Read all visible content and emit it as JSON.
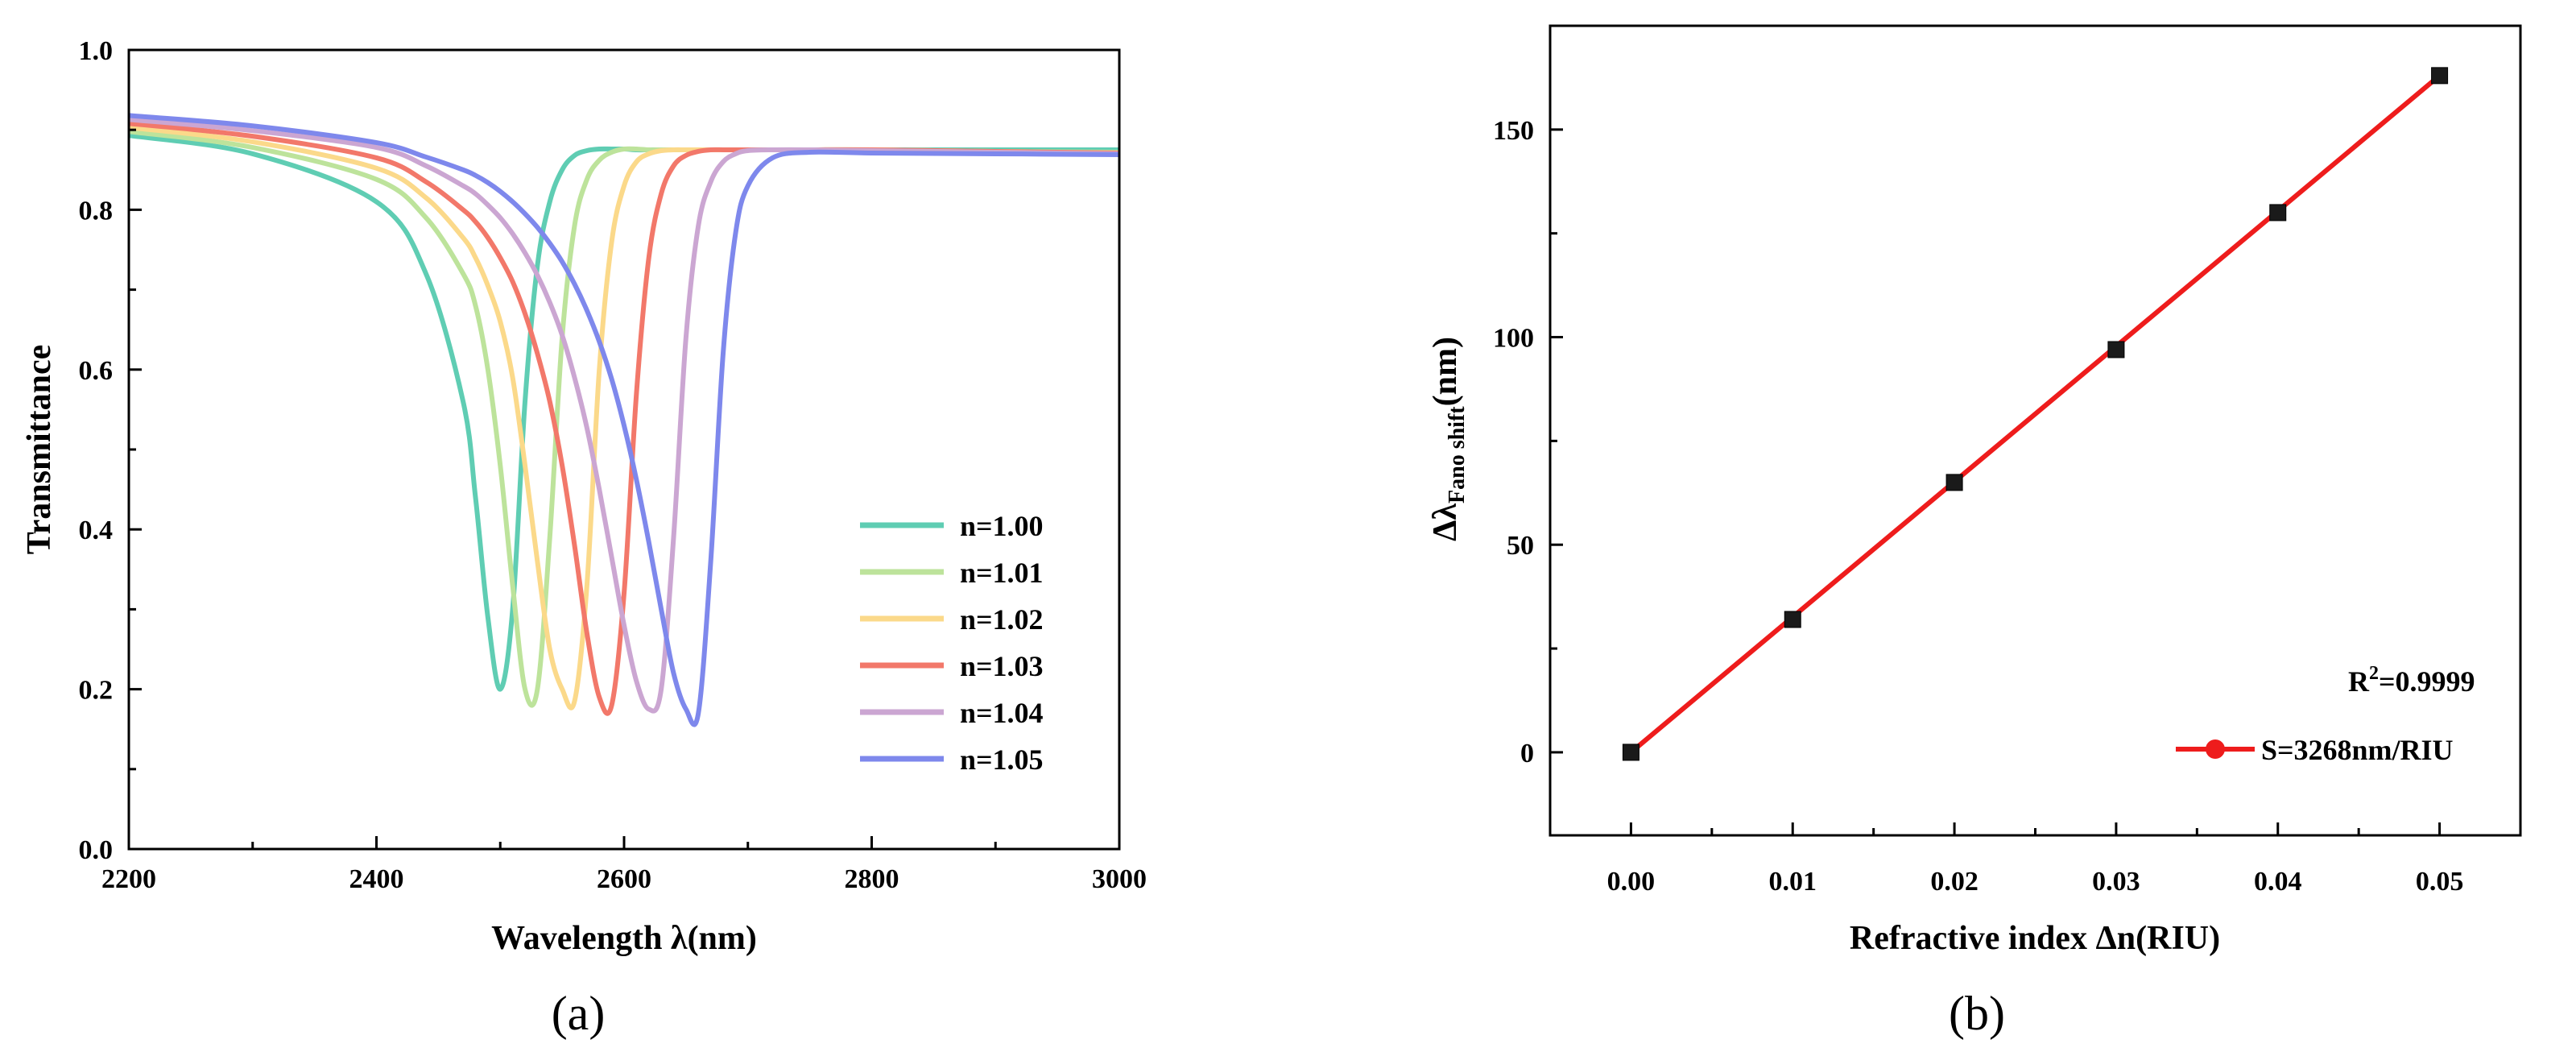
{
  "panels": [
    {
      "panel_label": "(a)",
      "legend_title": "",
      "annotation": ""
    },
    {
      "panel_label": "(b)",
      "annotation": "R²=0.9999",
      "annotation_base": "R",
      "annotation_sup": "2",
      "annotation_rest": "=0.9999"
    }
  ],
  "chart_data": [
    {
      "type": "line",
      "xlabel": "Wavelength λ(nm)",
      "ylabel": "Transmittance",
      "xlim": [
        2200,
        3000
      ],
      "ylim": [
        0.0,
        1.0
      ],
      "xticks": [
        "2200",
        "2400",
        "2600",
        "2800",
        "3000"
      ],
      "yticks": [
        "0.0",
        "0.2",
        "0.4",
        "0.6",
        "0.8",
        "1.0"
      ],
      "legend_position": "lower-right",
      "grid": false,
      "x": [
        2200,
        2300,
        2400,
        2440,
        2470,
        2480,
        2490,
        2500,
        2510,
        2520,
        2530,
        2540,
        2550,
        2560,
        2570,
        2580,
        2590,
        2600,
        2610,
        2620,
        2630,
        2640,
        2650,
        2660,
        2670,
        2680,
        2690,
        2700,
        2720,
        2750,
        2800,
        2900,
        3000
      ],
      "series": [
        {
          "name": "n=1.00",
          "color": "#5fcdb3",
          "values": [
            0.893,
            0.87,
            0.81,
            0.72,
            0.56,
            0.44,
            0.29,
            0.2,
            0.3,
            0.56,
            0.73,
            0.81,
            0.85,
            0.868,
            0.874,
            0.876,
            0.876,
            0.876,
            0.875,
            0.875,
            0.875,
            0.875,
            0.875,
            0.875,
            0.875,
            0.875,
            0.875,
            0.875,
            0.875,
            0.875,
            0.875,
            0.875,
            0.875
          ]
        },
        {
          "name": "n=1.01",
          "color": "#bde39b",
          "values": [
            0.898,
            0.878,
            0.838,
            0.79,
            0.72,
            0.68,
            0.6,
            0.48,
            0.33,
            0.2,
            0.2,
            0.39,
            0.64,
            0.78,
            0.838,
            0.862,
            0.872,
            0.876,
            0.876,
            0.875,
            0.875,
            0.875,
            0.875,
            0.875,
            0.875,
            0.875,
            0.875,
            0.875,
            0.875,
            0.875,
            0.875,
            0.873,
            0.872
          ]
        },
        {
          "name": "n=1.02",
          "color": "#fbd98a",
          "values": [
            0.903,
            0.885,
            0.852,
            0.815,
            0.765,
            0.74,
            0.705,
            0.66,
            0.59,
            0.48,
            0.36,
            0.25,
            0.2,
            0.185,
            0.33,
            0.6,
            0.76,
            0.83,
            0.86,
            0.87,
            0.874,
            0.875,
            0.875,
            0.875,
            0.875,
            0.875,
            0.875,
            0.875,
            0.875,
            0.875,
            0.875,
            0.873,
            0.871
          ]
        },
        {
          "name": "n=1.03",
          "color": "#f2786a",
          "values": [
            0.908,
            0.892,
            0.865,
            0.835,
            0.8,
            0.785,
            0.765,
            0.74,
            0.71,
            0.67,
            0.62,
            0.56,
            0.48,
            0.38,
            0.27,
            0.19,
            0.18,
            0.32,
            0.57,
            0.74,
            0.82,
            0.855,
            0.868,
            0.873,
            0.875,
            0.875,
            0.875,
            0.875,
            0.875,
            0.875,
            0.875,
            0.873,
            0.871
          ]
        },
        {
          "name": "n=1.04",
          "color": "#cba6d2",
          "values": [
            0.913,
            0.899,
            0.878,
            0.855,
            0.83,
            0.82,
            0.806,
            0.79,
            0.77,
            0.746,
            0.718,
            0.684,
            0.643,
            0.59,
            0.527,
            0.45,
            0.365,
            0.28,
            0.21,
            0.175,
            0.2,
            0.39,
            0.64,
            0.78,
            0.835,
            0.86,
            0.87,
            0.874,
            0.875,
            0.875,
            0.874,
            0.872,
            0.87
          ]
        },
        {
          "name": "n=1.05",
          "color": "#7e88ec",
          "values": [
            0.918,
            0.905,
            0.884,
            0.866,
            0.85,
            0.843,
            0.834,
            0.823,
            0.81,
            0.795,
            0.778,
            0.758,
            0.735,
            0.707,
            0.674,
            0.635,
            0.588,
            0.53,
            0.462,
            0.384,
            0.3,
            0.22,
            0.175,
            0.17,
            0.36,
            0.62,
            0.77,
            0.83,
            0.865,
            0.872,
            0.871,
            0.87,
            0.869
          ]
        }
      ]
    },
    {
      "type": "scatter",
      "xlabel": "Refractive index Δn(RIU)",
      "ylabel": "Δλ",
      "ylabel_subscript": "Fano shift",
      "ylabel_suffix": "(nm)",
      "xlim": [
        -0.005,
        0.055
      ],
      "ylim": [
        -20,
        175
      ],
      "xticks": [
        "0.00",
        "0.01",
        "0.02",
        "0.03",
        "0.04",
        "0.05"
      ],
      "yticks": [
        "0",
        "50",
        "100",
        "150"
      ],
      "legend_position": "lower-right",
      "grid": false,
      "series": [
        {
          "name": "",
          "type": "scatter",
          "color": "#1a1a1a",
          "x": [
            0.0,
            0.01,
            0.02,
            0.03,
            0.04,
            0.05
          ],
          "values": [
            0,
            32,
            65,
            97,
            130,
            163
          ]
        },
        {
          "name": "S=3268nm/RIU",
          "type": "line",
          "color": "#ee1c1c",
          "x": [
            0.0,
            0.05
          ],
          "values": [
            0,
            163
          ]
        }
      ]
    }
  ]
}
